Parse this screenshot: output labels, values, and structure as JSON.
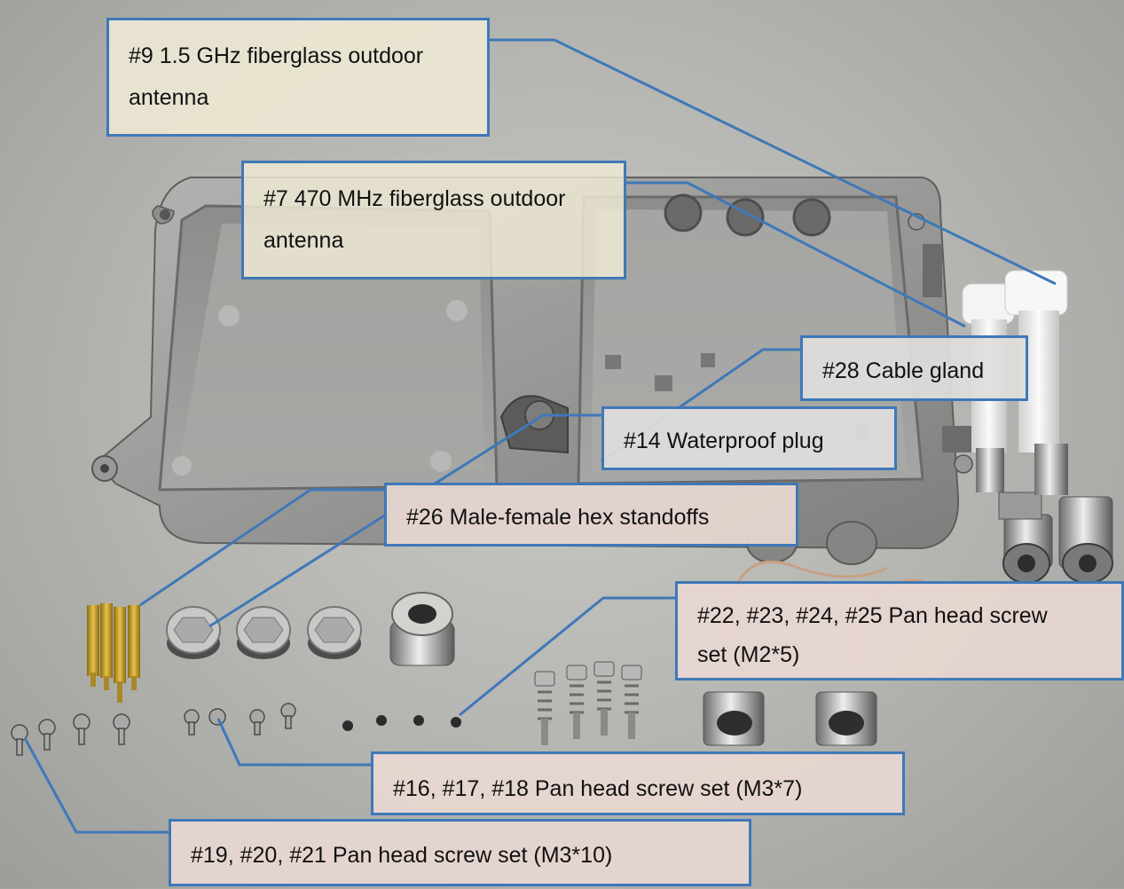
{
  "callouts": {
    "antenna_15ghz": {
      "line1": "#9 1.5 GHz fiberglass outdoor",
      "line2": "antenna"
    },
    "antenna_470mhz": {
      "line1": "#7  470 MHz fiberglass outdoor",
      "line2": "antenna"
    },
    "cable_gland": "#28 Cable gland",
    "waterproof_plug": "#14 Waterproof plug",
    "hex_standoffs": "#26 Male-female hex standoffs",
    "screw_m2x5": {
      "line1": "#22, #23, #24, #25 Pan head screw",
      "line2": "set (M2*5)"
    },
    "screw_m3x7": "#16, #17, #18 Pan head screw set (M3*7)",
    "screw_m3x10": "#19, #20, #21 Pan head screw set (M3*10)"
  },
  "colors": {
    "callout_border": "#3f78b8",
    "leader_line": "#3f78b8",
    "enclosure_metal": "#9a9a98",
    "brass": "#c9a52a"
  }
}
